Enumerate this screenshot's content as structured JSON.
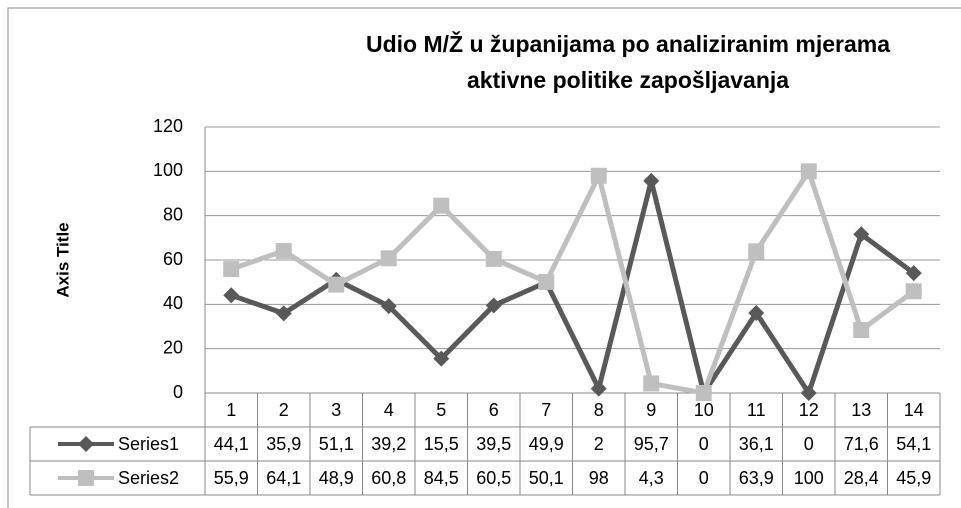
{
  "chart_data": {
    "type": "line",
    "title": [
      "Udio M/Ž u županijama po analiziranim mjerama",
      "aktivne politike zapošljavanja"
    ],
    "y_label": "Axis Title",
    "categories": [
      "1",
      "2",
      "3",
      "4",
      "5",
      "6",
      "7",
      "8",
      "9",
      "10",
      "11",
      "12",
      "13",
      "14"
    ],
    "series": [
      {
        "name": "Series1",
        "color": "#595959",
        "marker": "diamond",
        "values": [
          44.1,
          35.9,
          51.1,
          39.2,
          15.5,
          39.5,
          49.9,
          2,
          95.7,
          0,
          36.1,
          0,
          71.6,
          54.1
        ],
        "value_labels": [
          "44,1",
          "35,9",
          "51,1",
          "39,2",
          "15,5",
          "39,5",
          "49,9",
          "2",
          "95,7",
          "0",
          "36,1",
          "0",
          "71,6",
          "54,1"
        ]
      },
      {
        "name": "Series2",
        "color": "#bfbfbf",
        "marker": "square",
        "values": [
          55.9,
          64.1,
          48.9,
          60.8,
          84.5,
          60.5,
          50.1,
          98,
          4.3,
          0,
          63.9,
          100,
          28.4,
          45.9
        ],
        "value_labels": [
          "55,9",
          "64,1",
          "48,9",
          "60,8",
          "84,5",
          "60,5",
          "50,1",
          "98",
          "4,3",
          "0",
          "63,9",
          "100",
          "28,4",
          "45,9"
        ]
      }
    ],
    "ylim": [
      0,
      120
    ],
    "yticks": [
      0,
      20,
      40,
      60,
      80,
      100,
      120
    ],
    "grid": true,
    "data_table": true
  }
}
